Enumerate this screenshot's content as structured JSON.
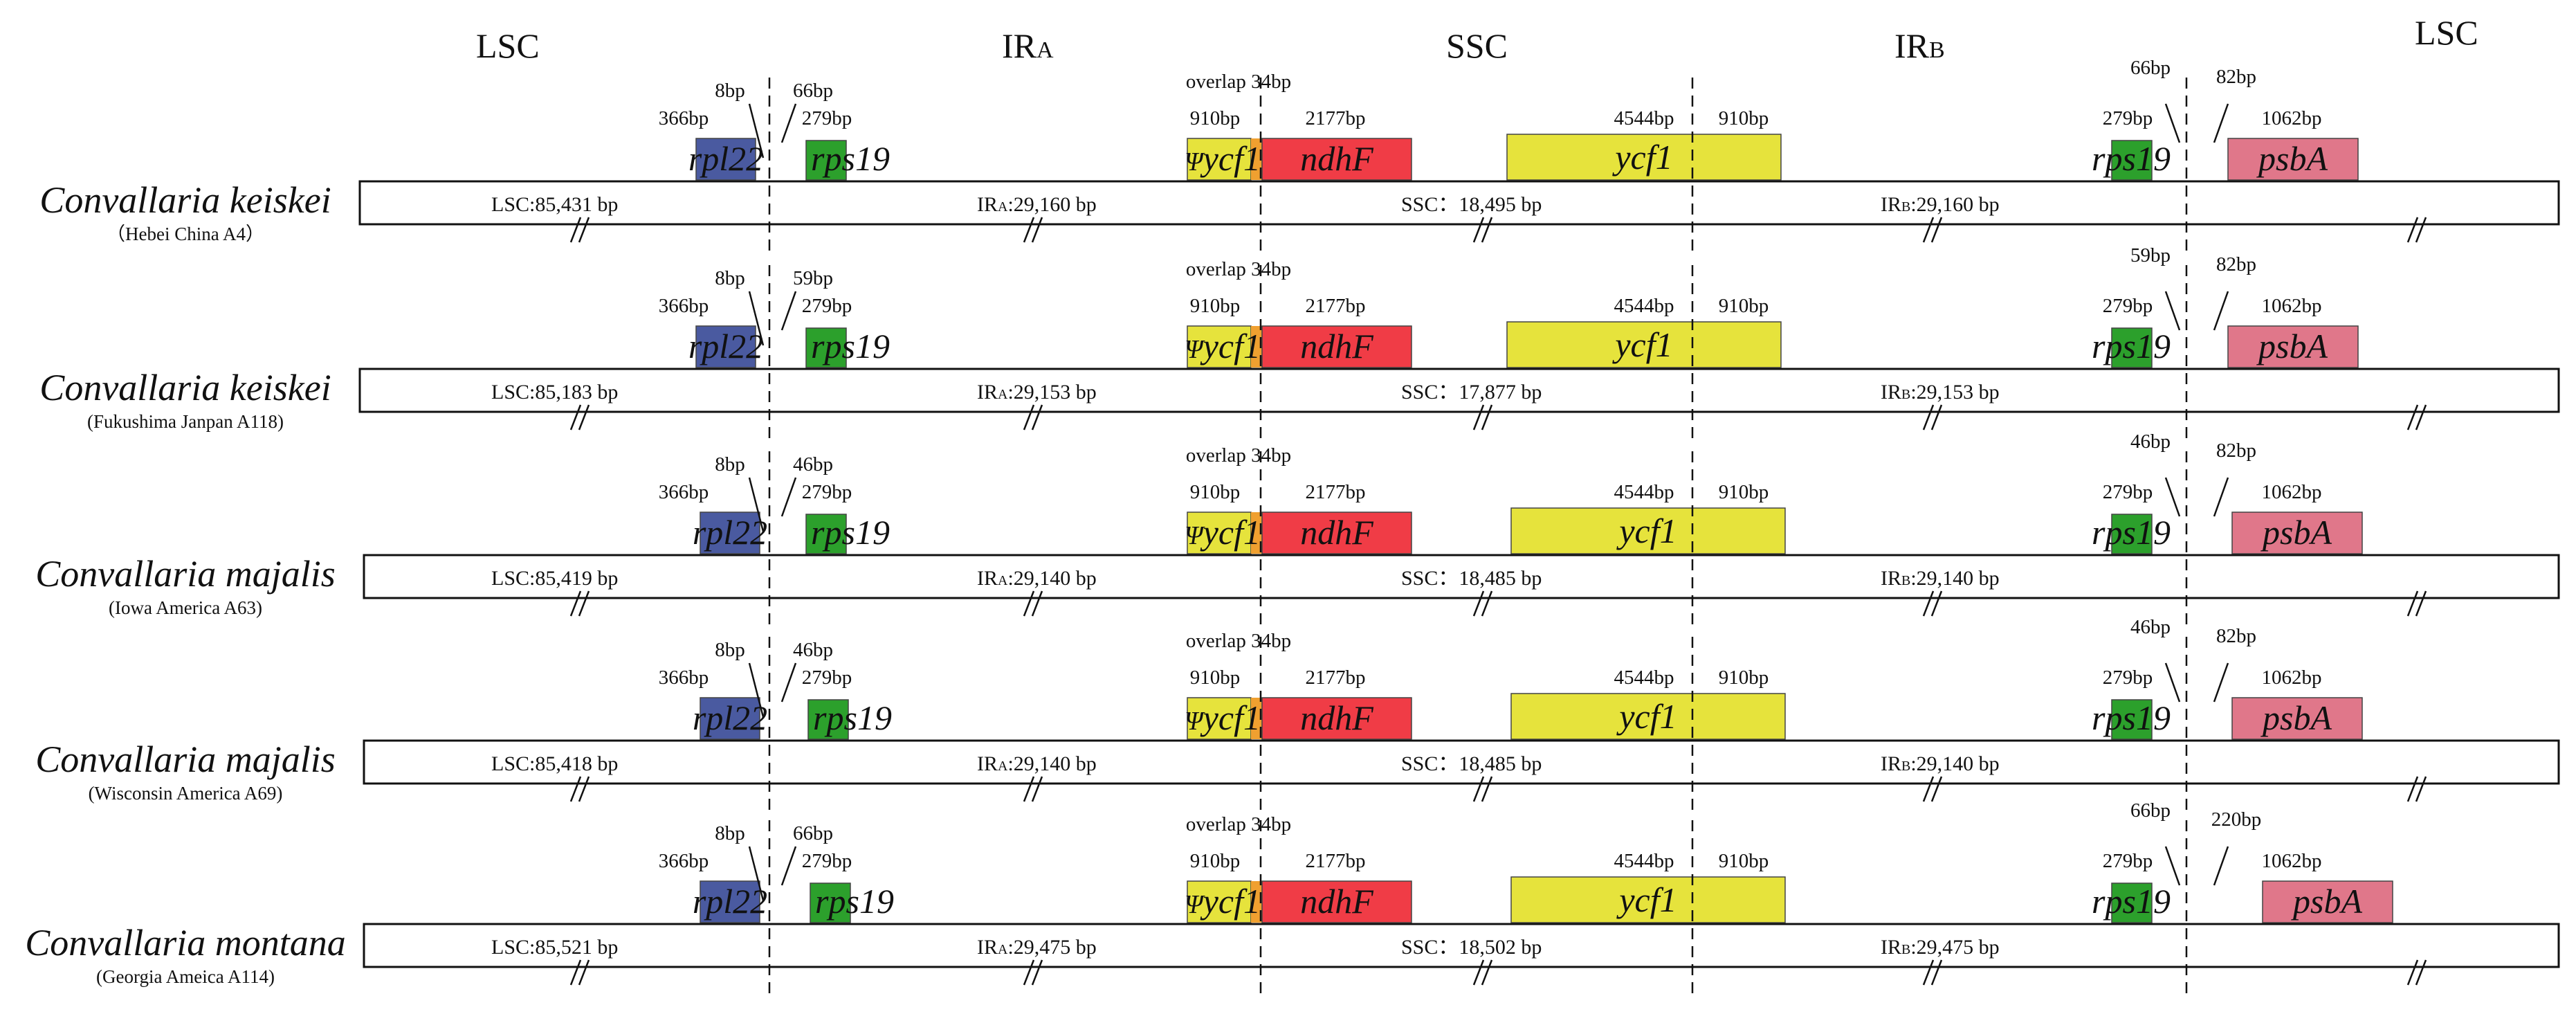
{
  "region_headers": {
    "lsc_left": "LSC",
    "ira": "IRA",
    "ira_main": "IR",
    "ira_sub": "A",
    "ssc": "SSC",
    "irb": "IRB",
    "irb_main": "IR",
    "irb_sub": "B",
    "lsc_right": "LSC"
  },
  "gene_names": {
    "rpl22": "rpl22",
    "rps19_left": "rps19",
    "ycf1_pseudo": "ycf1",
    "psi": "Ψ",
    "ndhF": "ndhF",
    "ycf1": "ycf1",
    "rps19_right": "rps19",
    "psbA": "psbA"
  },
  "colors": {
    "rpl22": "#4a5aa0",
    "rps19": "#2ca02c",
    "ycf1": "#e6e33c",
    "overlap": "#f0a030",
    "ndhF": "#f03c46",
    "psbA": "#e0778a"
  },
  "rows": [
    {
      "species": "Convallaria keiskei",
      "location": "（Hebei China  A4）",
      "rpl22_left_bp": "366bp",
      "rpl22_over_bp": "8bp",
      "rps19_gap_bp": "66bp",
      "rps19_len_bp": "279bp",
      "overlap": "overlap 34bp",
      "ycf1_pseudo_bp": "910bp",
      "ndhF_bp": "2177bp",
      "ycf1_bp": "4544bp",
      "ycf1_ir_bp": "910bp",
      "rps19_right_len_bp": "279bp",
      "rps19_right_gap_bp": "66bp",
      "psbA_gap_bp": "82bp",
      "psbA_bp": "1062bp",
      "lsc": "LSC:85,431 bp",
      "ira_pre": "IR",
      "ira_sub": "A",
      "ira_val": ":29,160 bp",
      "ssc": "SSC：18,495 bp",
      "irb_pre": "IR",
      "irb_sub": "B",
      "irb_val": ":29,160 bp"
    },
    {
      "species": "Convallaria keiskei",
      "location": "(Fukushima Janpan A118)",
      "rpl22_left_bp": "366bp",
      "rpl22_over_bp": "8bp",
      "rps19_gap_bp": "59bp",
      "rps19_len_bp": "279bp",
      "overlap": "overlap 34bp",
      "ycf1_pseudo_bp": "910bp",
      "ndhF_bp": "2177bp",
      "ycf1_bp": "4544bp",
      "ycf1_ir_bp": "910bp",
      "rps19_right_len_bp": "279bp",
      "rps19_right_gap_bp": "59bp",
      "psbA_gap_bp": "82bp",
      "psbA_bp": "1062bp",
      "lsc": "LSC:85,183 bp",
      "ira_pre": "IR",
      "ira_sub": "A",
      "ira_val": ":29,153 bp",
      "ssc": "SSC：17,877 bp",
      "irb_pre": "IR",
      "irb_sub": "B",
      "irb_val": ":29,153 bp"
    },
    {
      "species": "Convallaria majalis",
      "location": "(Iowa America  A63)",
      "rpl22_left_bp": "366bp",
      "rpl22_over_bp": "8bp",
      "rps19_gap_bp": "46bp",
      "rps19_len_bp": "279bp",
      "overlap": "overlap 34bp",
      "ycf1_pseudo_bp": "910bp",
      "ndhF_bp": "2177bp",
      "ycf1_bp": "4544bp",
      "ycf1_ir_bp": "910bp",
      "rps19_right_len_bp": "279bp",
      "rps19_right_gap_bp": "46bp",
      "psbA_gap_bp": "82bp",
      "psbA_bp": "1062bp",
      "lsc": "LSC:85,419 bp",
      "ira_pre": "IR",
      "ira_sub": "A",
      "ira_val": ":29,140 bp",
      "ssc": "SSC：18,485 bp",
      "irb_pre": "IR",
      "irb_sub": "B",
      "irb_val": ":29,140 bp"
    },
    {
      "species": "Convallaria majalis",
      "location": "(Wisconsin America  A69)",
      "rpl22_left_bp": "366bp",
      "rpl22_over_bp": "8bp",
      "rps19_gap_bp": "46bp",
      "rps19_len_bp": "279bp",
      "overlap": "overlap 34bp",
      "ycf1_pseudo_bp": "910bp",
      "ndhF_bp": "2177bp",
      "ycf1_bp": "4544bp",
      "ycf1_ir_bp": "910bp",
      "rps19_right_len_bp": "279bp",
      "rps19_right_gap_bp": "46bp",
      "psbA_gap_bp": "82bp",
      "psbA_bp": "1062bp",
      "lsc": "LSC:85,418 bp",
      "ira_pre": "IR",
      "ira_sub": "A",
      "ira_val": ":29,140 bp",
      "ssc": "SSC：18,485 bp",
      "irb_pre": "IR",
      "irb_sub": "B",
      "irb_val": ":29,140 bp"
    },
    {
      "species": "Convallaria  montana",
      "location": "(Georgia Ameica A114)",
      "rpl22_left_bp": "366bp",
      "rpl22_over_bp": "8bp",
      "rps19_gap_bp": "66bp",
      "rps19_len_bp": "279bp",
      "overlap": "overlap 34bp",
      "ycf1_pseudo_bp": "910bp",
      "ndhF_bp": "2177bp",
      "ycf1_bp": "4544bp",
      "ycf1_ir_bp": "910bp",
      "rps19_right_len_bp": "279bp",
      "rps19_right_gap_bp": "66bp",
      "psbA_gap_bp": "220bp",
      "psbA_bp": "1062bp",
      "lsc": "LSC:85,521 bp",
      "ira_pre": "IR",
      "ira_sub": "A",
      "ira_val": ":29,475 bp",
      "ssc": "SSC：18,502 bp",
      "irb_pre": "IR",
      "irb_sub": "B",
      "irb_val": ":29,475 bp"
    }
  ]
}
